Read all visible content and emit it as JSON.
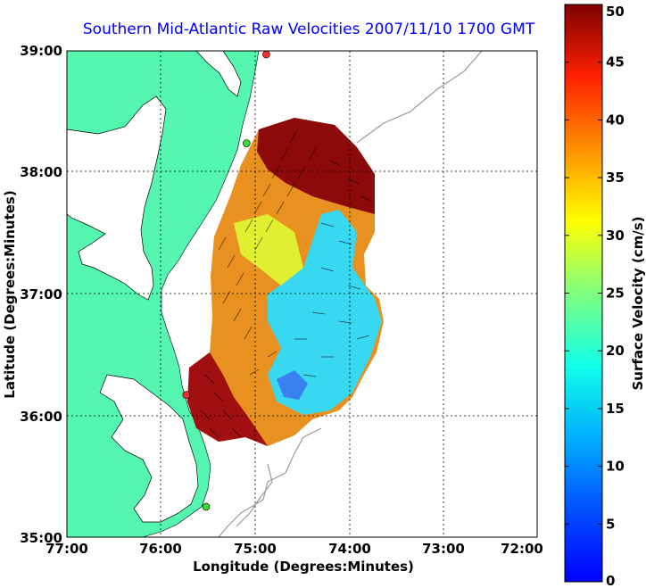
{
  "title": "Southern Mid-Atlantic Raw Velocities 2007/11/10 1700 GMT",
  "x_axis": {
    "label": "Longitude (Degrees:Minutes)",
    "ticks": [
      "77:00",
      "76:00",
      "75:00",
      "74:00",
      "73:00",
      "72:00"
    ]
  },
  "y_axis": {
    "label": "Latitude (Degrees:Minutes)",
    "ticks": [
      "39:00",
      "38:00",
      "37:00",
      "36:00",
      "35:00"
    ]
  },
  "colorbar": {
    "label": "Surface Velocity (cm/s)",
    "ticks": [
      "50",
      "45",
      "40",
      "35",
      "30",
      "25",
      "20",
      "15",
      "10",
      "5",
      "0"
    ],
    "min": 0,
    "max": 50
  },
  "colors": {
    "land": "#55f7b0",
    "water": "#ffffff",
    "title": "#0000ff",
    "station": "#e8352a"
  },
  "map": {
    "lon_range": [
      -77,
      -72
    ],
    "lat_range": [
      35,
      39
    ],
    "grid": true
  },
  "stations": [
    {
      "lon": -74.88,
      "lat": 38.97,
      "color": "#ff2a2a"
    },
    {
      "lon": -75.09,
      "lat": 38.24,
      "color": "#33dd33"
    },
    {
      "lon": -75.73,
      "lat": 36.17,
      "color": "#ff2a2a"
    },
    {
      "lon": -75.52,
      "lat": 35.25,
      "color": "#33dd33"
    }
  ]
}
